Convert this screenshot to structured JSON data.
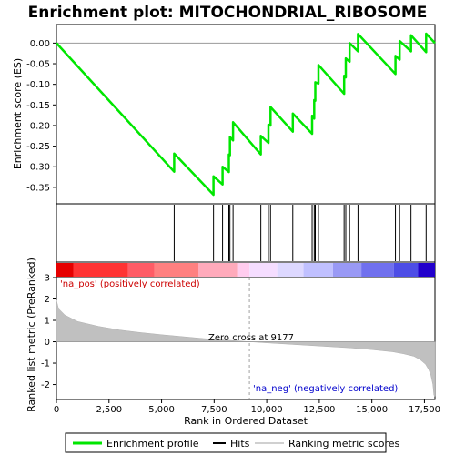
{
  "chart_data": {
    "type": "line",
    "title": "Enrichment plot: MITOCHONDRIAL_RIBOSOME",
    "enrichment_panel": {
      "ylabel": "Enrichment score (ES)",
      "ylim": [
        -0.39,
        0.045
      ],
      "yticks": [
        0.0,
        -0.05,
        -0.1,
        -0.15,
        -0.2,
        -0.25,
        -0.3,
        -0.35
      ],
      "ytick_labels": [
        "0.00",
        "-0.05",
        "-0.10",
        "-0.15",
        "-0.20",
        "-0.25",
        "-0.30",
        "-0.35"
      ],
      "grid": false,
      "series": [
        {
          "name": "Enrichment profile",
          "color": "#00e600",
          "x": [
            0,
            5600,
            5600,
            7470,
            7470,
            7900,
            7900,
            8200,
            8200,
            8250,
            8250,
            8400,
            8400,
            9720,
            9720,
            10080,
            10080,
            10180,
            10180,
            11240,
            11240,
            12160,
            12160,
            12260,
            12260,
            12310,
            12310,
            12460,
            12460,
            13680,
            13680,
            13760,
            13760,
            13940,
            13940,
            14340,
            14340,
            16120,
            16120,
            16320,
            16320,
            16860,
            16860,
            17580,
            17580,
            18000
          ],
          "y": [
            0.0,
            -0.312,
            -0.268,
            -0.368,
            -0.323,
            -0.343,
            -0.3,
            -0.313,
            -0.27,
            -0.272,
            -0.228,
            -0.236,
            -0.192,
            -0.27,
            -0.225,
            -0.242,
            -0.198,
            -0.2,
            -0.155,
            -0.215,
            -0.171,
            -0.22,
            -0.176,
            -0.183,
            -0.138,
            -0.14,
            -0.095,
            -0.098,
            -0.053,
            -0.123,
            -0.079,
            -0.083,
            -0.037,
            -0.045,
            0.0,
            -0.02,
            0.022,
            -0.075,
            -0.031,
            -0.04,
            0.005,
            -0.02,
            0.019,
            -0.022,
            0.023,
            0.0
          ]
        }
      ]
    },
    "hits": {
      "name": "Hits",
      "x": [
        5600,
        7470,
        7900,
        8200,
        8250,
        8400,
        9720,
        10080,
        10180,
        11240,
        12160,
        12260,
        12310,
        12460,
        13680,
        13760,
        13940,
        14340,
        16120,
        16320,
        16860,
        17580
      ]
    },
    "heatmap": {
      "colors": [
        "#e60000",
        "#ff3333",
        "#ff5c66",
        "#ff8080",
        "#ffaabb",
        "#ffccee",
        "#f5ddff",
        "#ddd8ff",
        "#c0c0ff",
        "#9999f5",
        "#7070ee",
        "#4d4de6",
        "#2200cc"
      ],
      "bounds": [
        0,
        800,
        3400,
        4650,
        6750,
        8600,
        9180,
        10500,
        11750,
        13150,
        14500,
        16050,
        17200,
        18000
      ]
    },
    "ranked_metric": {
      "name": "Ranking metric scores",
      "ylabel": "Ranked list metric (PreRanked)",
      "ylim": [
        -2.7,
        3.0
      ],
      "yticks": [
        3,
        2,
        1,
        0,
        -1,
        -2
      ],
      "ytick_labels": [
        "3",
        "2",
        "1",
        "0",
        "-1",
        "-2"
      ],
      "x": [
        0,
        100,
        400,
        1000,
        2000,
        3000,
        4000,
        5000,
        6000,
        7000,
        8000,
        9177,
        10000,
        11000,
        12000,
        13000,
        14000,
        15000,
        16000,
        16500,
        17000,
        17300,
        17550,
        17700,
        17800,
        17900,
        17950,
        18000
      ],
      "y": [
        1.95,
        1.55,
        1.25,
        0.95,
        0.72,
        0.55,
        0.43,
        0.33,
        0.24,
        0.15,
        0.08,
        0.0,
        -0.05,
        -0.11,
        -0.17,
        -0.23,
        -0.29,
        -0.37,
        -0.47,
        -0.56,
        -0.68,
        -0.84,
        -1.05,
        -1.3,
        -1.55,
        -2.0,
        -2.5,
        -2.55
      ],
      "zero_cross_label": "Zero cross at 9177",
      "zero_cross_x": 9177,
      "pos_label": "'na_pos' (positively correlated)",
      "neg_label": "'na_neg' (negatively correlated)",
      "pos_color": "#cc0000",
      "neg_color": "#0000cc"
    },
    "xaxis": {
      "xlabel": "Rank in Ordered Dataset",
      "xlim": [
        0,
        18000
      ],
      "xticks": [
        0,
        2500,
        5000,
        7500,
        10000,
        12500,
        15000,
        17500
      ],
      "xtick_labels": [
        "0",
        "2,500",
        "5,000",
        "7,500",
        "10,000",
        "12,500",
        "15,000",
        "17,500"
      ]
    },
    "legend": {
      "placement": "bottom",
      "entries": [
        {
          "label": "Enrichment profile",
          "color": "#00e600"
        },
        {
          "label": "Hits",
          "color": "#000000"
        },
        {
          "label": "Ranking metric scores",
          "color": "#c0c0c0"
        }
      ]
    }
  }
}
